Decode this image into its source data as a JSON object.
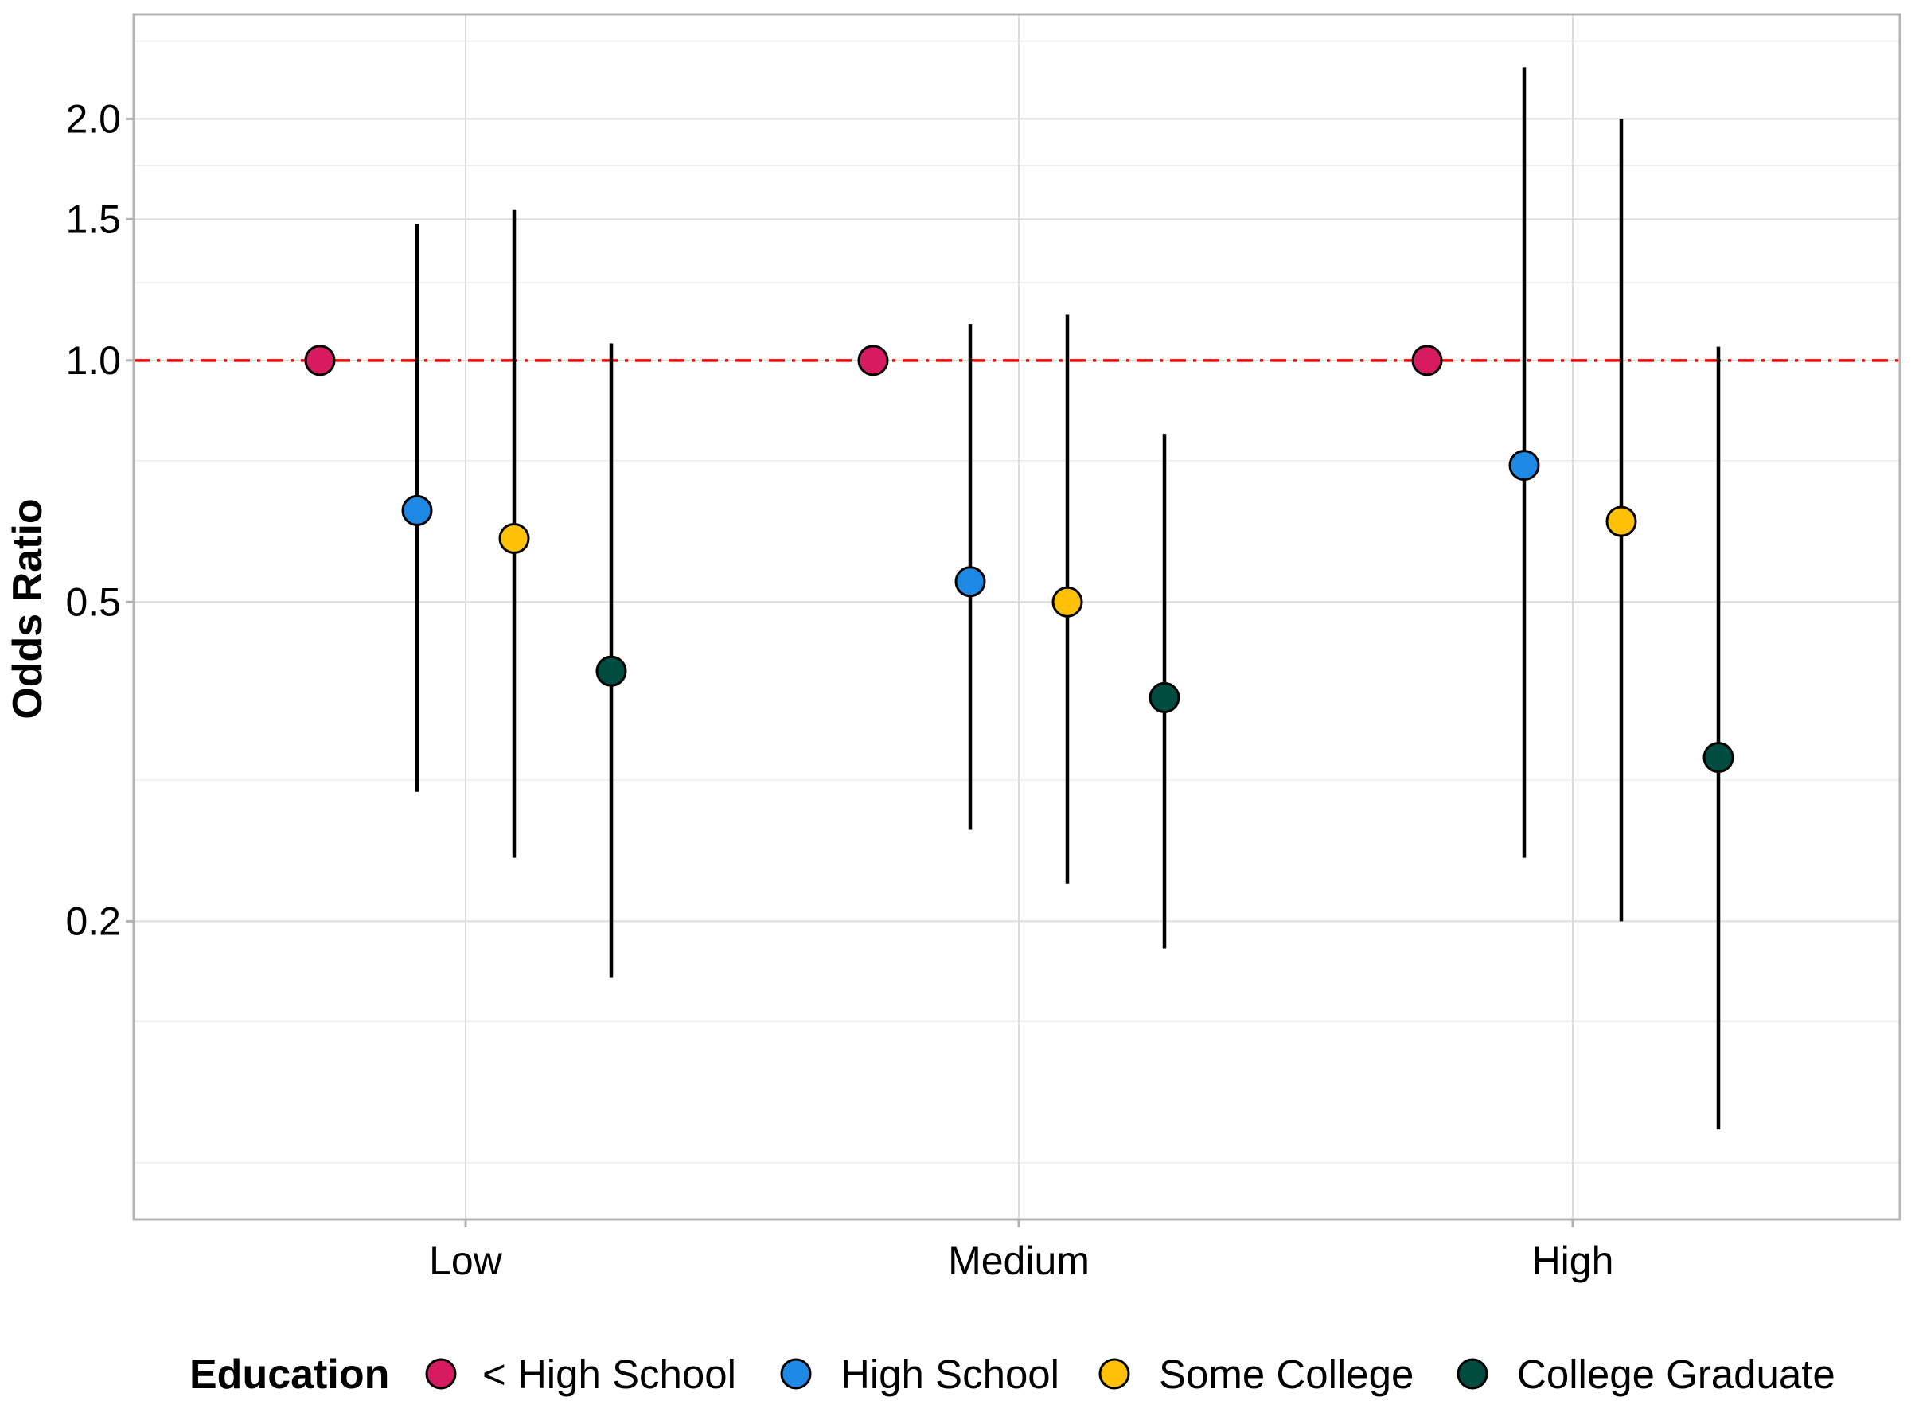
{
  "chart_data": {
    "type": "scatter",
    "subtype": "point-range (odds ratios with 95% CI, log scale)",
    "title": "",
    "xlabel": "",
    "ylabel": "Odds Ratio",
    "y_scale": "log",
    "ylim": [
      0.085,
      2.7
    ],
    "y_ticks": [
      0.2,
      0.5,
      1.0,
      1.5,
      2.0
    ],
    "y_tick_labels": [
      "0.2",
      "0.5",
      "1.0",
      "1.5",
      "2.0"
    ],
    "y_minor_ticks": [
      0.1,
      0.15,
      0.3,
      0.75,
      1.25,
      1.75,
      2.5
    ],
    "categories": [
      "Low",
      "Medium",
      "High"
    ],
    "reference_line": {
      "y": 1.0,
      "color": "#ff0000",
      "style": "dash-dot"
    },
    "legend": {
      "title": "Education",
      "position": "bottom",
      "entries": [
        "< High School",
        "High School",
        "Some College",
        "College Graduate"
      ]
    },
    "series": [
      {
        "name": "< High School",
        "color": "#d81b60",
        "values": [
          1.0,
          1.0,
          1.0
        ],
        "lower": [
          1.0,
          1.0,
          1.0
        ],
        "upper": [
          1.0,
          1.0,
          1.0
        ]
      },
      {
        "name": "High School",
        "color": "#1e88e5",
        "values": [
          0.65,
          0.53,
          0.74
        ],
        "lower": [
          0.29,
          0.26,
          0.24
        ],
        "upper": [
          1.48,
          1.11,
          2.32
        ]
      },
      {
        "name": "Some College",
        "color": "#ffc107",
        "values": [
          0.6,
          0.5,
          0.63
        ],
        "lower": [
          0.24,
          0.223,
          0.2
        ],
        "upper": [
          1.54,
          1.14,
          2.0
        ]
      },
      {
        "name": "College Graduate",
        "color": "#004d40",
        "values": [
          0.41,
          0.38,
          0.32
        ],
        "lower": [
          0.17,
          0.185,
          0.11
        ],
        "upper": [
          1.05,
          0.81,
          1.04
        ]
      }
    ]
  }
}
